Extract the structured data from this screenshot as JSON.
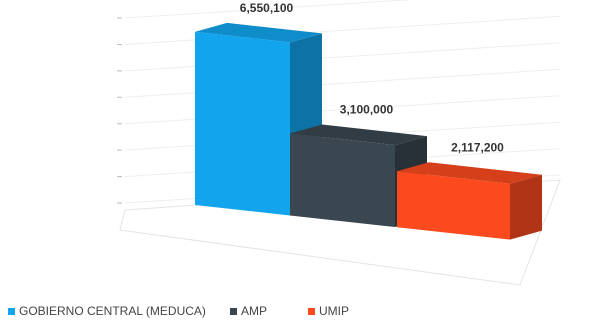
{
  "chart_data": {
    "type": "bar3d",
    "series": [
      {
        "name": "GOBIERNO CENTRAL (MEDUCA)",
        "color": "#12a5ee",
        "values": [
          6550100
        ],
        "value_labels": [
          "6,550,100"
        ]
      },
      {
        "name": "AMP",
        "color": "#3a4650",
        "values": [
          3100000
        ],
        "value_labels": [
          "3,100,000"
        ]
      },
      {
        "name": "UMIP",
        "color": "#fb4a1e",
        "values": [
          2117200
        ],
        "value_labels": [
          "2,117,200"
        ]
      }
    ],
    "ylim": [
      0,
      7000000
    ],
    "yticks": [
      0,
      1000000,
      2000000,
      3000000,
      4000000,
      5000000,
      6000000,
      7000000
    ],
    "grid": true
  }
}
